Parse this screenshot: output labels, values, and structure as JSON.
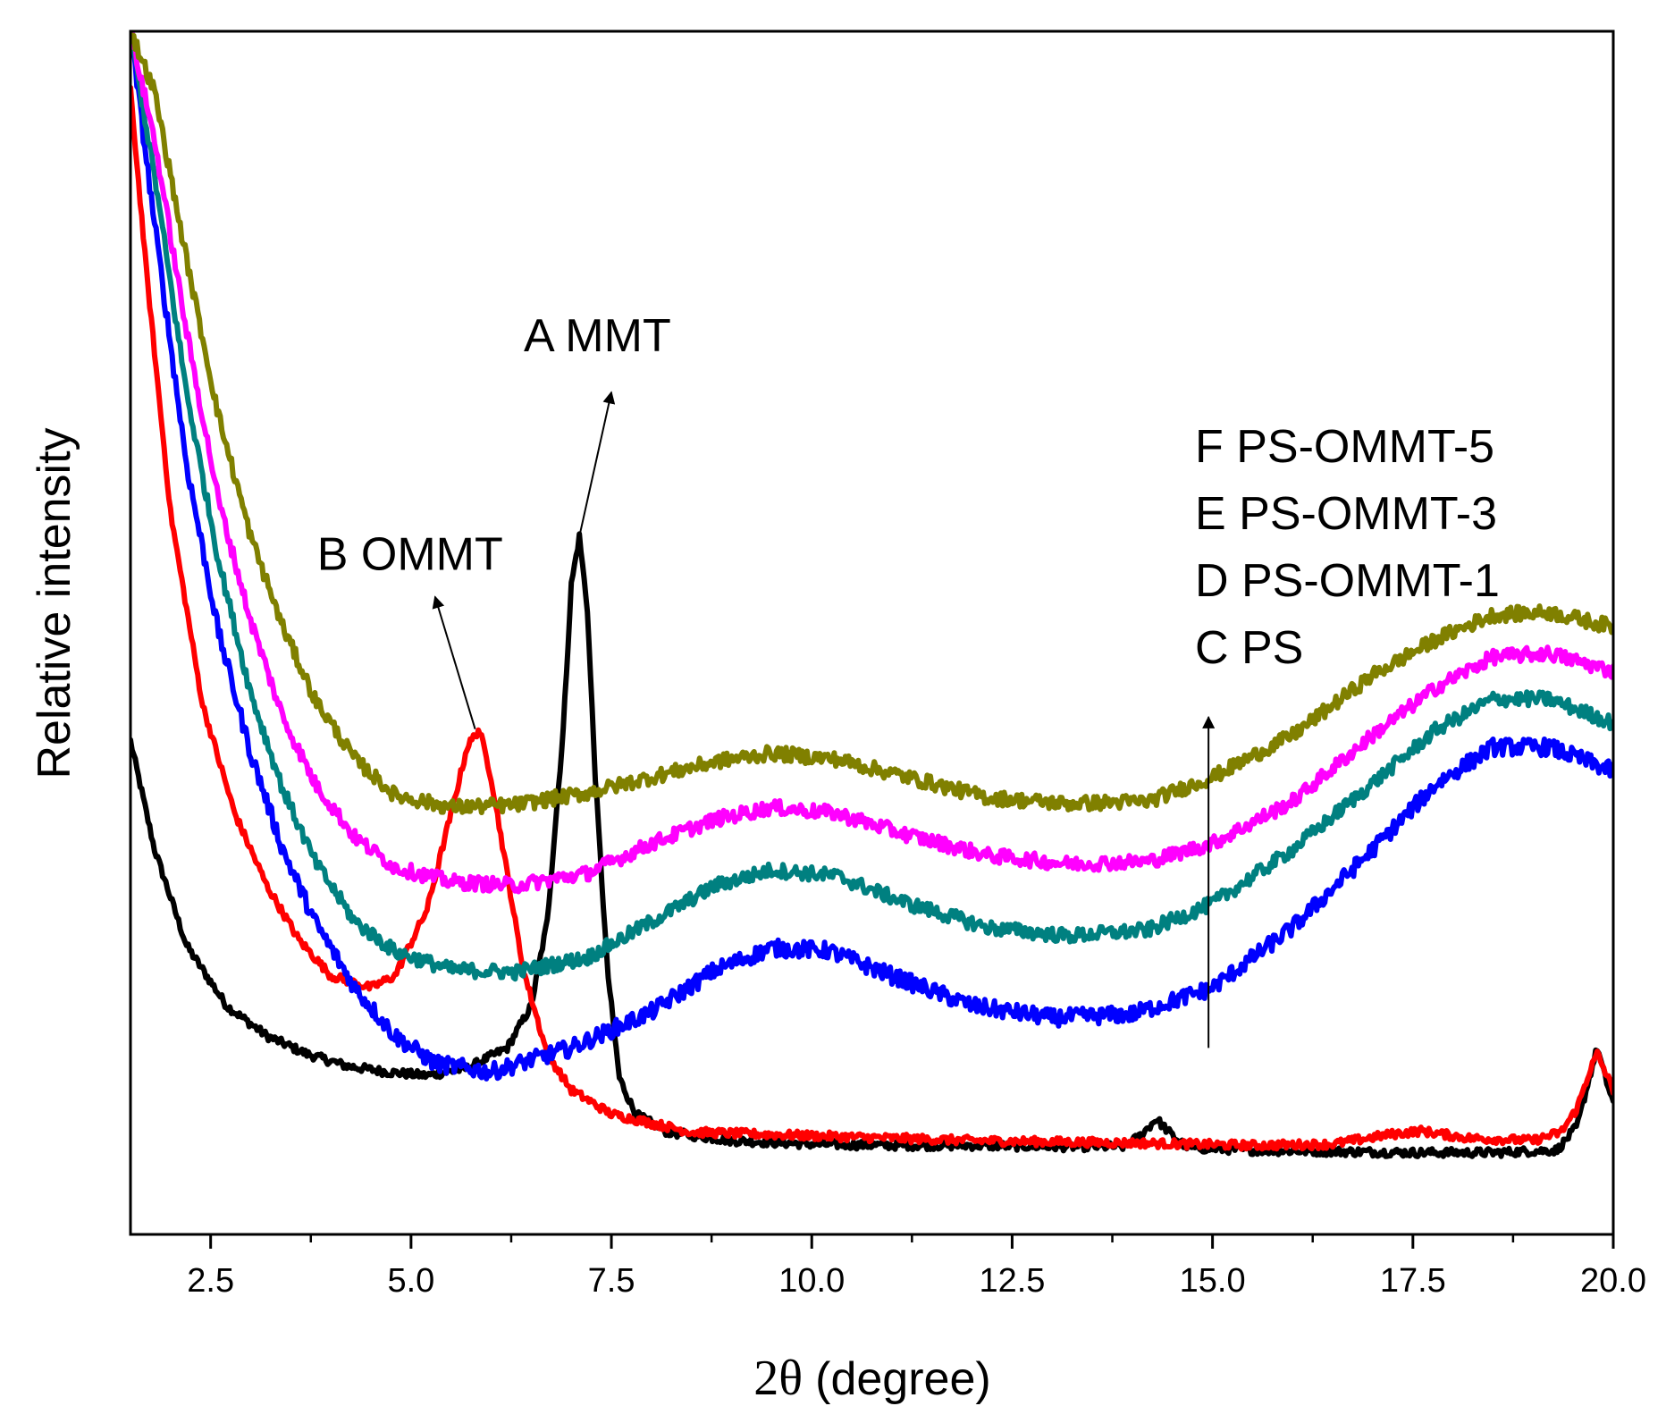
{
  "chart_data": {
    "type": "line",
    "title": "",
    "xlabel_symbol": "2θ",
    "xlabel_unit": "(degree)",
    "ylabel": "Relative intensity",
    "xlim": [
      1.5,
      20.0
    ],
    "ylim": [
      0,
      100
    ],
    "x_ticks": [
      2.5,
      5.0,
      7.5,
      10.0,
      12.5,
      15.0,
      17.5,
      20.0
    ],
    "x_tick_labels": [
      "2.5",
      "5.0",
      "7.5",
      "10.0",
      "12.5",
      "15.0",
      "17.5",
      "20.0"
    ],
    "y_tick_labels": false,
    "series": [
      {
        "name": "A MMT",
        "color": "#000000",
        "points": [
          [
            1.5,
            41
          ],
          [
            1.8,
            32
          ],
          [
            2.2,
            24
          ],
          [
            2.7,
            19
          ],
          [
            3.2,
            16.5
          ],
          [
            3.7,
            15
          ],
          [
            4.2,
            14
          ],
          [
            4.7,
            13.5
          ],
          [
            5.2,
            13.2
          ],
          [
            5.7,
            13.8
          ],
          [
            6.2,
            15.5
          ],
          [
            6.5,
            19
          ],
          [
            6.7,
            26
          ],
          [
            6.9,
            42
          ],
          [
            7.0,
            54
          ],
          [
            7.1,
            58
          ],
          [
            7.2,
            52
          ],
          [
            7.3,
            38
          ],
          [
            7.45,
            22
          ],
          [
            7.6,
            13
          ],
          [
            7.8,
            10
          ],
          [
            8.2,
            8.5
          ],
          [
            9,
            7.8
          ],
          [
            10,
            7.5
          ],
          [
            11,
            7.4
          ],
          [
            12,
            7.4
          ],
          [
            13,
            7.3
          ],
          [
            13.9,
            7.3
          ],
          [
            14.1,
            8.2
          ],
          [
            14.3,
            9.6
          ],
          [
            14.5,
            8.2
          ],
          [
            14.7,
            7.2
          ],
          [
            15.5,
            7.0
          ],
          [
            16.5,
            6.9
          ],
          [
            17.5,
            6.8
          ],
          [
            18.5,
            6.8
          ],
          [
            19.3,
            7.0
          ],
          [
            19.55,
            9.0
          ],
          [
            19.7,
            13
          ],
          [
            19.8,
            15.5
          ],
          [
            19.9,
            13
          ],
          [
            20.0,
            11
          ]
        ]
      },
      {
        "name": "B OMMT",
        "color": "#ff0000",
        "points": [
          [
            1.5,
            95
          ],
          [
            1.7,
            80
          ],
          [
            2.0,
            60
          ],
          [
            2.4,
            44
          ],
          [
            2.8,
            35
          ],
          [
            3.2,
            29
          ],
          [
            3.6,
            24.5
          ],
          [
            4.0,
            21.5
          ],
          [
            4.5,
            20.5
          ],
          [
            4.8,
            21.5
          ],
          [
            5.2,
            27
          ],
          [
            5.5,
            35
          ],
          [
            5.7,
            40.5
          ],
          [
            5.85,
            42
          ],
          [
            6.0,
            38
          ],
          [
            6.2,
            30
          ],
          [
            6.4,
            22
          ],
          [
            6.7,
            15
          ],
          [
            7.0,
            12
          ],
          [
            7.5,
            10
          ],
          [
            8.5,
            8.5
          ],
          [
            10,
            8.2
          ],
          [
            12,
            7.8
          ],
          [
            14,
            7.6
          ],
          [
            15.5,
            7.4
          ],
          [
            16.5,
            7.5
          ],
          [
            17.2,
            8.3
          ],
          [
            17.6,
            8.6
          ],
          [
            18.2,
            8.0
          ],
          [
            19.0,
            7.8
          ],
          [
            19.35,
            8.5
          ],
          [
            19.55,
            10.5
          ],
          [
            19.7,
            13.5
          ],
          [
            19.8,
            15
          ],
          [
            19.9,
            13.5
          ],
          [
            20.0,
            12
          ]
        ]
      },
      {
        "name": "C PS",
        "color": "#0000ff",
        "points": [
          [
            1.5,
            100
          ],
          [
            1.8,
            84
          ],
          [
            2.2,
            64
          ],
          [
            2.6,
            50
          ],
          [
            3.0,
            40
          ],
          [
            3.4,
            32
          ],
          [
            3.8,
            26
          ],
          [
            4.3,
            20.5
          ],
          [
            4.8,
            16.5
          ],
          [
            5.3,
            14.2
          ],
          [
            6.0,
            13.5
          ],
          [
            7.0,
            15.5
          ],
          [
            8.0,
            18.5
          ],
          [
            8.8,
            22
          ],
          [
            9.5,
            23.8
          ],
          [
            10.2,
            23.6
          ],
          [
            11,
            21.5
          ],
          [
            12,
            19
          ],
          [
            13,
            18
          ],
          [
            14,
            18.3
          ],
          [
            15,
            20.5
          ],
          [
            16,
            25.5
          ],
          [
            17,
            32
          ],
          [
            17.8,
            37.5
          ],
          [
            18.5,
            40.5
          ],
          [
            19.2,
            40.5
          ],
          [
            20.0,
            38.5
          ]
        ]
      },
      {
        "name": "D PS-OMMT-1",
        "color": "#008080",
        "points": [
          [
            1.5,
            100
          ],
          [
            1.8,
            88
          ],
          [
            2.2,
            70
          ],
          [
            2.6,
            56
          ],
          [
            3.0,
            45
          ],
          [
            3.4,
            37
          ],
          [
            3.8,
            31
          ],
          [
            4.3,
            26
          ],
          [
            4.8,
            23.5
          ],
          [
            5.5,
            22
          ],
          [
            6.3,
            21.8
          ],
          [
            7.2,
            23
          ],
          [
            8.0,
            26
          ],
          [
            8.8,
            29
          ],
          [
            9.5,
            30.3
          ],
          [
            10.3,
            29.8
          ],
          [
            11.2,
            27.5
          ],
          [
            12.2,
            25.5
          ],
          [
            13.2,
            24.8
          ],
          [
            14.2,
            25.3
          ],
          [
            15.0,
            27.5
          ],
          [
            16,
            32
          ],
          [
            17,
            37.5
          ],
          [
            17.8,
            42
          ],
          [
            18.5,
            44.5
          ],
          [
            19.2,
            44.5
          ],
          [
            20.0,
            42.5
          ]
        ]
      },
      {
        "name": "E PS-OMMT-3",
        "color": "#ff00ff",
        "points": [
          [
            1.5,
            100
          ],
          [
            1.8,
            91
          ],
          [
            2.2,
            75
          ],
          [
            2.6,
            61
          ],
          [
            3.0,
            51
          ],
          [
            3.4,
            43
          ],
          [
            3.8,
            37.5
          ],
          [
            4.3,
            33
          ],
          [
            4.8,
            30.5
          ],
          [
            5.5,
            29.3
          ],
          [
            6.3,
            29
          ],
          [
            7.2,
            30
          ],
          [
            8.0,
            32.5
          ],
          [
            8.8,
            34.5
          ],
          [
            9.5,
            35.5
          ],
          [
            10.3,
            35
          ],
          [
            11.2,
            33.2
          ],
          [
            12.2,
            31.5
          ],
          [
            13.2,
            30.8
          ],
          [
            14.2,
            31
          ],
          [
            15.0,
            32.5
          ],
          [
            16,
            36
          ],
          [
            17,
            41.5
          ],
          [
            17.8,
            45.5
          ],
          [
            18.5,
            48
          ],
          [
            19.2,
            48.3
          ],
          [
            20.0,
            46.8
          ]
        ]
      },
      {
        "name": "F PS-OMMT-5",
        "color": "#808000",
        "points": [
          [
            1.5,
            100
          ],
          [
            1.8,
            95
          ],
          [
            2.2,
            81
          ],
          [
            2.6,
            68
          ],
          [
            3.0,
            58
          ],
          [
            3.4,
            50.5
          ],
          [
            3.8,
            44.5
          ],
          [
            4.3,
            39.5
          ],
          [
            4.8,
            36.5
          ],
          [
            5.5,
            35.5
          ],
          [
            6.3,
            35.7
          ],
          [
            7.2,
            36.7
          ],
          [
            8.0,
            38
          ],
          [
            8.8,
            39.3
          ],
          [
            9.5,
            40
          ],
          [
            10.3,
            39.5
          ],
          [
            11.2,
            38
          ],
          [
            12.2,
            36.3
          ],
          [
            13.2,
            35.8
          ],
          [
            14.2,
            36
          ],
          [
            15.0,
            38
          ],
          [
            16,
            41.5
          ],
          [
            17,
            46.5
          ],
          [
            17.8,
            49.5
          ],
          [
            18.5,
            51.5
          ],
          [
            19.2,
            51.7
          ],
          [
            20.0,
            50.5
          ]
        ]
      }
    ],
    "annotations": [
      {
        "text": "A MMT",
        "x": 7.1,
        "y": 58,
        "label_x": 7.5,
        "label_y": 70
      },
      {
        "text": "B OMMT",
        "x": 5.8,
        "y": 42,
        "label_x": 5.3,
        "label_y": 53
      },
      {
        "text": "F PS-OMMT-5",
        "row": 0
      },
      {
        "text": "E PS-OMMT-3",
        "row": 1
      },
      {
        "text": "D PS-OMMT-1",
        "row": 2
      },
      {
        "text": "C PS",
        "row": 3
      }
    ],
    "trend_arrow": {
      "x": 14.95,
      "y_from": 15.5,
      "y_to": 43
    },
    "grid": false,
    "legend": "right (annotation text)"
  }
}
